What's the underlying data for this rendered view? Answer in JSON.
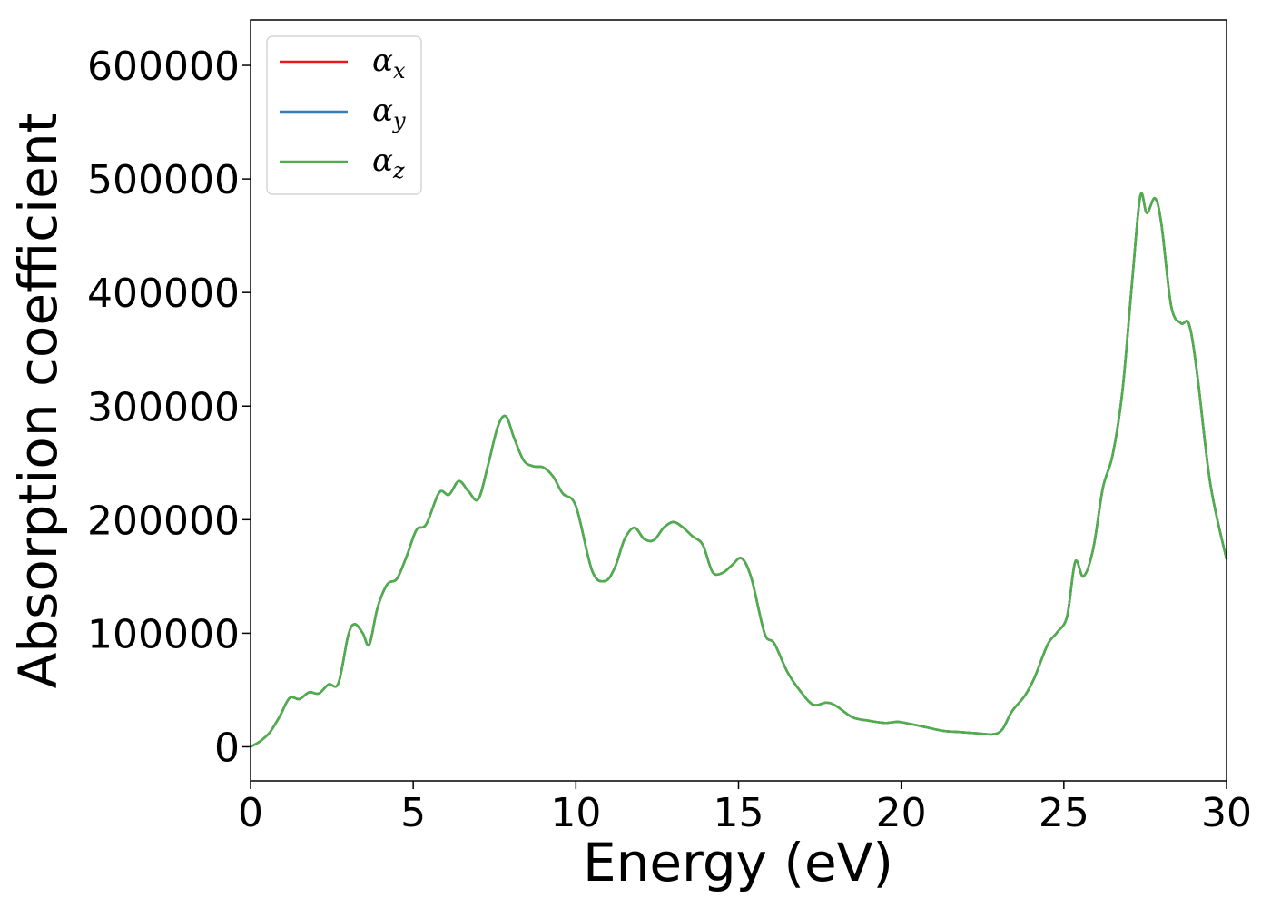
{
  "chart_data": {
    "type": "line",
    "title": "",
    "xlabel": "Energy (eV)",
    "ylabel": "Absorption coefficient",
    "xlim": [
      0,
      30
    ],
    "ylim": [
      -30000,
      640000
    ],
    "xticks": [
      0,
      5,
      10,
      15,
      20,
      25,
      30
    ],
    "yticks": [
      0,
      100000,
      200000,
      300000,
      400000,
      500000,
      600000
    ],
    "xtick_labels": [
      "0",
      "5",
      "10",
      "15",
      "20",
      "25",
      "30"
    ],
    "ytick_labels": [
      "0",
      "100000",
      "200000",
      "300000",
      "400000",
      "500000",
      "600000"
    ],
    "grid": false,
    "legend_position": "top-left",
    "series": [
      {
        "name": "α",
        "subscript": "x",
        "color": "#e41a1c"
      },
      {
        "name": "α",
        "subscript": "y",
        "color": "#377eb8"
      },
      {
        "name": "α",
        "subscript": "z",
        "color": "#4daf4a"
      }
    ],
    "x": [
      0,
      0.3,
      0.6,
      0.9,
      1.2,
      1.5,
      1.8,
      2.1,
      2.4,
      2.7,
      3.0,
      3.2,
      3.45,
      3.65,
      3.9,
      4.2,
      4.5,
      4.8,
      5.1,
      5.4,
      5.8,
      6.1,
      6.4,
      6.7,
      7.0,
      7.3,
      7.6,
      7.85,
      8.1,
      8.4,
      8.7,
      9.0,
      9.3,
      9.6,
      10.0,
      10.5,
      10.9,
      11.2,
      11.5,
      11.8,
      12.1,
      12.4,
      12.7,
      13.0,
      13.3,
      13.6,
      13.9,
      14.2,
      14.5,
      14.8,
      15.1,
      15.4,
      15.8,
      16.1,
      16.5,
      16.9,
      17.3,
      17.7,
      18.0,
      18.5,
      19.0,
      19.5,
      19.9,
      20.3,
      20.8,
      21.3,
      21.8,
      22.3,
      22.8,
      23.1,
      23.4,
      23.8,
      24.1,
      24.5,
      24.8,
      25.1,
      25.35,
      25.6,
      25.9,
      26.2,
      26.5,
      26.8,
      27.1,
      27.35,
      27.55,
      27.8,
      28.0,
      28.3,
      28.6,
      28.85,
      29.1,
      29.5,
      30.0
    ],
    "y": [
      0,
      5000,
      13000,
      27000,
      43000,
      42000,
      48000,
      47000,
      55000,
      56000,
      98000,
      108000,
      100000,
      90000,
      122000,
      143000,
      148000,
      168000,
      191000,
      196000,
      224000,
      222000,
      234000,
      225000,
      218000,
      248000,
      282000,
      291000,
      272000,
      252000,
      247000,
      246000,
      238000,
      223000,
      212000,
      155000,
      146000,
      158000,
      183000,
      193000,
      183000,
      182000,
      193000,
      198000,
      193000,
      185000,
      178000,
      154000,
      153000,
      160000,
      166000,
      148000,
      100000,
      91000,
      66000,
      49000,
      37000,
      39000,
      36000,
      26000,
      23000,
      21000,
      22000,
      20000,
      17000,
      14000,
      13000,
      12000,
      11000,
      15000,
      31000,
      45000,
      61000,
      90000,
      101000,
      115000,
      163000,
      150000,
      174000,
      228000,
      257000,
      313000,
      410000,
      485000,
      470000,
      483000,
      460000,
      388000,
      373000,
      372000,
      328000,
      232000,
      165000
    ]
  }
}
